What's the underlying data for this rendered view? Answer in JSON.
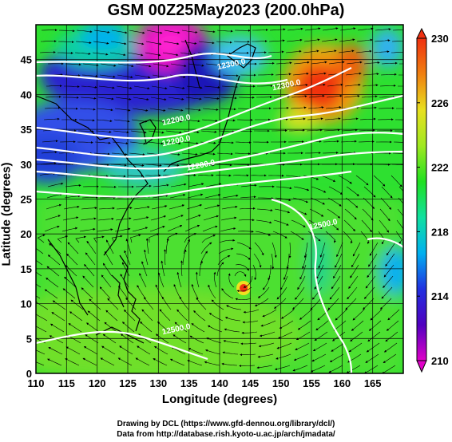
{
  "title": "GSM 00Z25May2023 (200.0hPa)",
  "xlabel": "Longitude (degrees)",
  "ylabel": "Latitude  (degrees)",
  "lon_ticks": [
    110,
    115,
    120,
    125,
    130,
    135,
    140,
    145,
    150,
    155,
    160,
    165
  ],
  "lat_ticks": [
    0,
    5,
    10,
    15,
    20,
    25,
    30,
    35,
    40,
    45
  ],
  "lon_range": [
    110,
    170
  ],
  "lat_range": [
    0,
    50
  ],
  "colorbar": {
    "labels": [
      230,
      226,
      222,
      218,
      214,
      210
    ],
    "range": [
      210,
      230
    ],
    "colors": [
      "#e000c8",
      "#5000c0",
      "#2030e0",
      "#00b0f0",
      "#10e0a0",
      "#20e020",
      "#a0e820",
      "#e8e020",
      "#f08010",
      "#f03010"
    ]
  },
  "contour_labels": [
    {
      "text": "12300.0",
      "lon": 142,
      "lat": 44
    },
    {
      "text": "12300.0",
      "lon": 151,
      "lat": 41
    },
    {
      "text": "12200.0",
      "lon": 133,
      "lat": 36
    },
    {
      "text": "12200.0",
      "lon": 133,
      "lat": 33
    },
    {
      "text": "12200.0",
      "lon": 137,
      "lat": 29.5
    },
    {
      "text": "12500.0",
      "lon": 157,
      "lat": 21
    },
    {
      "text": "12500.0",
      "lon": 133,
      "lat": 6
    }
  ],
  "credits": [
    "Drawing by DCL (https://www.gfd-dennou.org/library/dcl/)",
    "Data from http://database.rish.kyoto-u.ac.jp/arch/jmadata/"
  ]
}
